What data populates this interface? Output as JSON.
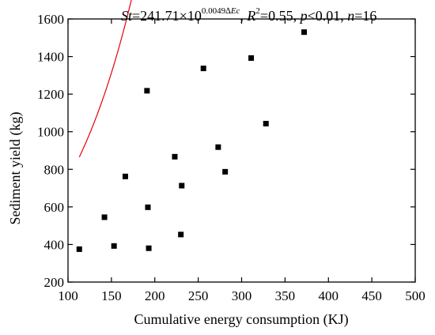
{
  "chart_data": {
    "type": "scatter",
    "xlabel": "Cumulative energy consumption (KJ)",
    "ylabel": "Sediment yield (kg)",
    "xlim": [
      100,
      500
    ],
    "ylim": [
      200,
      1600
    ],
    "x_ticks": [
      100,
      150,
      200,
      250,
      300,
      350,
      400,
      450,
      500
    ],
    "y_ticks": [
      200,
      400,
      600,
      800,
      1000,
      1200,
      1400,
      1600
    ],
    "grid": false,
    "legend": "none",
    "annotation": {
      "st_label": "St",
      "st_value": "=241.71×10",
      "exponent": "0.0049",
      "delta_symbol": "∆",
      "exponent_var": "Ec",
      "sep1": ", ",
      "r_label": "R",
      "r_exp": "2",
      "r_value": "=0.55, ",
      "p_label": "p",
      "p_value": "<0.01, ",
      "n_label": "n",
      "n_value": "=16"
    },
    "series": [
      {
        "marker": "square",
        "color": "#000000",
        "points": [
          [
            113,
            375
          ],
          [
            142,
            545
          ],
          [
            153,
            392
          ],
          [
            166,
            762
          ],
          [
            191,
            1218
          ],
          [
            192,
            598
          ],
          [
            193,
            380
          ],
          [
            223,
            867
          ],
          [
            230,
            453
          ],
          [
            231,
            713
          ],
          [
            256,
            1337
          ],
          [
            273,
            918
          ],
          [
            281,
            787
          ],
          [
            311,
            1392
          ],
          [
            328,
            1043
          ],
          [
            372,
            1530
          ]
        ]
      }
    ],
    "fit_line": {
      "color": "#e8000b",
      "equation": {
        "a": 241.71,
        "b": 0.0049
      },
      "x_range": [
        113,
        372
      ]
    }
  }
}
